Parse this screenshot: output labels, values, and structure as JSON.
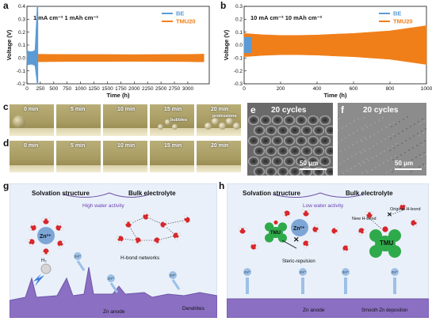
{
  "panels": {
    "a": "a",
    "b": "b",
    "c": "c",
    "d": "d",
    "e": "e",
    "f": "f",
    "g": "g",
    "h": "h"
  },
  "chart_data": [
    {
      "type": "line",
      "panel": "a",
      "title": "1 mA cm⁻²   1 mAh cm⁻²",
      "xlabel": "Time (h)",
      "ylabel": "Voltage (V)",
      "xlim": [
        0,
        3400
      ],
      "ylim": [
        -0.2,
        0.4
      ],
      "xticks": [
        "0",
        "250",
        "500",
        "750",
        "1000",
        "1250",
        "1500",
        "1750",
        "2000",
        "2250",
        "2500",
        "2750",
        "3000"
      ],
      "yticks": [
        "-0.2",
        "-0.1",
        "0.0",
        "0.1",
        "0.2",
        "0.3",
        "0.4"
      ],
      "legend_position": "top-right",
      "series": [
        {
          "name": "BE",
          "color": "#5b9bd5",
          "x": [
            0,
            40,
            100,
            150,
            190,
            200,
            205
          ],
          "y_upper": [
            0.06,
            0.05,
            0.05,
            0.06,
            0.4,
            0.4,
            0.4
          ],
          "y_lower": [
            -0.06,
            -0.05,
            -0.05,
            -0.06,
            -0.2,
            -0.2,
            -0.2
          ]
        },
        {
          "name": "TMU20",
          "color": "#f07f1a",
          "x": [
            0,
            500,
            1000,
            1500,
            2000,
            2500,
            3000,
            3300
          ],
          "y_upper": [
            0.03,
            0.028,
            0.027,
            0.027,
            0.026,
            0.027,
            0.028,
            0.03
          ],
          "y_lower": [
            -0.03,
            -0.028,
            -0.027,
            -0.027,
            -0.026,
            -0.027,
            -0.028,
            -0.03
          ]
        }
      ]
    },
    {
      "type": "line",
      "panel": "b",
      "title": "10 mA cm⁻²   10 mAh cm⁻²",
      "xlabel": "Time (h)",
      "ylabel": "Voltage (V)",
      "xlim": [
        0,
        1000
      ],
      "ylim": [
        -0.3,
        0.3
      ],
      "xticks": [
        "0",
        "200",
        "400",
        "600",
        "800",
        "1000"
      ],
      "yticks": [
        "-0.3",
        "-0.2",
        "-0.1",
        "0.0",
        "0.1",
        "0.2",
        "0.3"
      ],
      "legend_position": "top-right",
      "series": [
        {
          "name": "BE",
          "color": "#5b9bd5",
          "x": [
            0,
            20,
            40
          ],
          "y_upper": [
            0.06,
            0.06,
            0.06
          ],
          "y_lower": [
            -0.06,
            -0.06,
            -0.06
          ]
        },
        {
          "name": "TMU20",
          "color": "#f07f1a",
          "x": [
            0,
            100,
            200,
            300,
            400,
            500,
            600,
            700,
            800,
            900,
            1000
          ],
          "y_upper": [
            0.09,
            0.08,
            0.075,
            0.075,
            0.078,
            0.085,
            0.09,
            0.1,
            0.11,
            0.13,
            0.15
          ],
          "y_lower": [
            -0.09,
            -0.08,
            -0.075,
            -0.075,
            -0.078,
            -0.085,
            -0.09,
            -0.1,
            -0.11,
            -0.13,
            -0.15
          ]
        }
      ]
    }
  ],
  "micro": {
    "c_times": [
      "0 min",
      "5 min",
      "10 min",
      "15 min",
      "20 min"
    ],
    "c_notes": {
      "bubbles": "bubbles",
      "protrusions": "protrusions"
    },
    "d_times": [
      "0 min",
      "5 min",
      "10 min",
      "15 min",
      "20 min"
    ]
  },
  "sem": {
    "e_title": "20 cycles",
    "e_scale": "50 μm",
    "f_title": "20 cycles",
    "f_scale": "50 μm"
  },
  "schematic_g": {
    "solvation": "Solvation structure",
    "bulk": "Bulk electrolyte",
    "activity": "High water activity",
    "zn": "Zn²⁺",
    "hbond": "H-bond networks",
    "h2": "H₂",
    "zn_small": "Zn²⁺",
    "anode": "Zn anode",
    "dendrites": "Dendrites"
  },
  "schematic_h": {
    "solvation": "Solvation structure",
    "bulk": "Bulk electrolyte",
    "activity": "Low water activity",
    "zn": "Zn²⁺",
    "tmu": "TMU",
    "steric": "Steric-repulsion",
    "original": "Original H-bond",
    "new": "New H-bond",
    "zn_small": "Zn²⁺",
    "anode": "Zn anode",
    "smooth": "Smooth Zn deposition"
  },
  "colors": {
    "be": "#5b9bd5",
    "tmu": "#f07f1a",
    "anode": "#8b6fc2",
    "bg_schematic": "#eaf1fb",
    "tmu_green": "#2faa4a"
  }
}
